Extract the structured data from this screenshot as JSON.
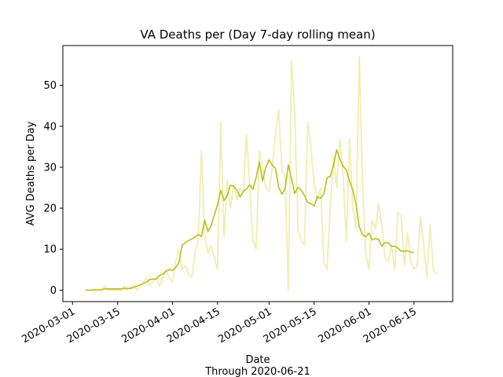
{
  "chart_data": {
    "type": "line",
    "title": "VA Deaths per (Day 7-day rolling mean)",
    "xlabel": "Date",
    "xlabel_sub": "Through 2020-06-21",
    "ylabel": "AVG Deaths per Day",
    "x_tick_labels": [
      "2020-03-01",
      "2020-03-15",
      "2020-04-01",
      "2020-04-15",
      "2020-05-01",
      "2020-05-15",
      "2020-06-01",
      "2020-06-15"
    ],
    "x_ticks": [
      "2020-03-01",
      "2020-03-15",
      "2020-04-01",
      "2020-04-15",
      "2020-05-01",
      "2020-05-15",
      "2020-06-01",
      "2020-06-15"
    ],
    "y_ticks": [
      0,
      10,
      20,
      30,
      40,
      50
    ],
    "xlim": [
      "2020-02-27",
      "2020-06-27"
    ],
    "ylim": [
      -2.8,
      59.7
    ],
    "grid": false,
    "colors": {
      "daily": "#f0eeb0",
      "rolling": "#bcbd22"
    },
    "x_start": "2020-03-05",
    "series": [
      {
        "values": [
          0,
          0,
          0,
          0,
          0,
          0,
          1,
          0,
          0,
          0,
          0,
          0,
          1,
          0,
          1,
          1,
          0,
          1,
          2,
          3,
          1,
          2,
          3,
          1,
          3,
          5,
          3,
          2,
          7,
          10,
          5,
          6,
          4,
          3,
          9,
          12,
          34,
          13,
          9,
          11,
          8,
          5,
          41,
          13,
          27,
          20,
          26,
          22,
          25,
          24,
          38,
          25,
          12,
          10,
          34,
          30,
          25,
          24,
          30,
          38,
          44,
          29,
          28,
          0,
          56,
          43,
          15,
          12,
          11,
          41,
          35,
          26,
          22,
          25,
          7,
          5,
          20,
          33,
          25,
          37,
          28,
          12,
          37,
          20,
          15,
          57,
          27,
          9,
          5,
          17,
          15,
          21,
          16,
          8,
          7,
          11,
          5,
          19,
          18,
          6,
          14,
          7,
          5,
          6,
          18,
          11,
          3,
          16,
          5,
          4
        ],
        "role": "daily"
      },
      {
        "values": [
          0,
          0,
          0,
          0.1,
          0.1,
          0.1,
          0.3,
          0.3,
          0.3,
          0.3,
          0.3,
          0.3,
          0.4,
          0.4,
          0.4,
          0.7,
          1.0,
          1.3,
          1.6,
          2.0,
          2.6,
          2.7,
          2.7,
          3.6,
          3.9,
          4.6,
          5.0,
          4.8,
          5.5,
          6.7,
          10.9,
          11.6,
          12.1,
          12.5,
          12.9,
          13.6,
          13.1,
          17.1,
          14.3,
          15.7,
          18.3,
          20.9,
          24.4,
          21.9,
          23.1,
          25.6,
          25.4,
          24.4,
          22.8,
          24.1,
          24.7,
          25.7,
          24.6,
          27.6,
          31.3,
          26.7,
          30.0,
          31.8,
          30.5,
          29.7,
          25.1,
          23.4,
          24.8,
          30.6,
          27.0,
          23.6,
          25.1,
          24.4,
          23.1,
          21.4,
          21.1,
          20.5,
          22.8,
          22.4,
          23.5,
          27.4,
          27.8,
          30.4,
          34.3,
          31.9,
          30.3,
          29.3,
          26.6,
          24.4,
          21.0,
          15.5,
          13.6,
          13.0,
          13.9,
          12.3,
          12.6,
          12.4,
          10.7,
          11.6,
          11.6,
          10.7,
          10.7,
          10.3,
          9.5,
          9.5,
          9.6,
          9.3,
          9.1
        ],
        "role": "rolling"
      }
    ]
  }
}
